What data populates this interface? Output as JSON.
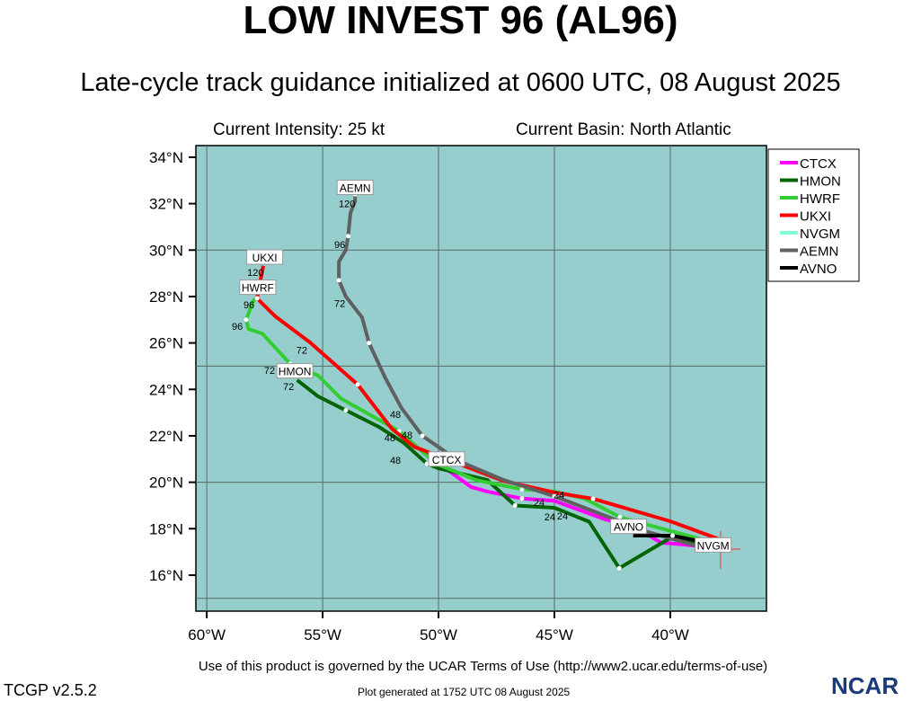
{
  "title": "LOW INVEST 96 (AL96)",
  "subtitle": "Late-cycle track guidance initialized at 0600 UTC, 08 August 2025",
  "current_intensity": "Current Intensity: 25 kt",
  "current_basin": "Current Basin: North Atlantic",
  "terms": "Use of this product is governed by the UCAR Terms of Use (http://www2.ucar.edu/terms-of-use)",
  "version": "TCGP v2.5.2",
  "generated": "Plot generated at 1752 UTC   08 August 2025",
  "logo": "NCAR",
  "chart_data": {
    "type": "map-tracks",
    "lon_range": [
      -60.47,
      -35.85
    ],
    "lat_range": [
      14.45,
      34.5
    ],
    "x_ticks": [
      {
        "v": -60,
        "l": "60°W"
      },
      {
        "v": -55,
        "l": "55°W"
      },
      {
        "v": -50,
        "l": "50°W"
      },
      {
        "v": -45,
        "l": "45°W"
      },
      {
        "v": -40,
        "l": "40°W"
      }
    ],
    "y_ticks": [
      {
        "v": 16,
        "l": "16°N"
      },
      {
        "v": 18,
        "l": "18°N"
      },
      {
        "v": 20,
        "l": "20°N"
      },
      {
        "v": 22,
        "l": "22°N"
      },
      {
        "v": 24,
        "l": "24°N"
      },
      {
        "v": 26,
        "l": "26°N"
      },
      {
        "v": 28,
        "l": "28°N"
      },
      {
        "v": 30,
        "l": "30°N"
      },
      {
        "v": 32,
        "l": "32°N"
      },
      {
        "v": 34,
        "l": "34°N"
      }
    ],
    "grid_lon": [
      -60,
      -55,
      -50,
      -45,
      -40
    ],
    "grid_lat": [
      15,
      20,
      25,
      30
    ],
    "background": "#96cdcd",
    "storm_position": [
      -37.83,
      17.12
    ],
    "models": [
      {
        "name": "CTCX",
        "color": "#ff00ff",
        "track": [
          [
            -38.1,
            17.2
          ],
          [
            -40.4,
            17.4
          ],
          [
            -41.6,
            18.1
          ],
          [
            -42.8,
            18.4
          ],
          [
            -45,
            19.2
          ],
          [
            -46.4,
            19.3
          ],
          [
            -47.9,
            19.6
          ],
          [
            -48.6,
            19.8
          ],
          [
            -49.7,
            20.6
          ]
        ],
        "label_at": [
          -49.65,
          21.0
        ]
      },
      {
        "name": "HMON",
        "color": "#006400",
        "track": [
          [
            -37.9,
            17.2
          ],
          [
            -40,
            17.6
          ],
          [
            -42.2,
            16.3
          ],
          [
            -43.5,
            18.3
          ],
          [
            -45,
            18.9
          ],
          [
            -46.7,
            19.0
          ],
          [
            -47.9,
            20.1
          ],
          [
            -50,
            20.6
          ],
          [
            -50.5,
            20.8
          ],
          [
            -51.5,
            21.7
          ],
          [
            -52.6,
            22.4
          ],
          [
            -54,
            23.1
          ],
          [
            -55.2,
            23.7
          ],
          [
            -56.1,
            24.4
          ]
        ],
        "label_at": [
          -56.2,
          24.8
        ]
      },
      {
        "name": "HWRF",
        "color": "#32cd32",
        "track": [
          [
            -37.9,
            17.35
          ],
          [
            -40,
            17.9
          ],
          [
            -42.17,
            18.5
          ],
          [
            -43.7,
            19.3
          ],
          [
            -45,
            19.6
          ],
          [
            -46.4,
            19.7
          ],
          [
            -48.4,
            20.1
          ],
          [
            -50.1,
            20.8
          ],
          [
            -51.7,
            22.2
          ],
          [
            -54.2,
            23.6
          ],
          [
            -55.2,
            24.6
          ],
          [
            -56.4,
            25.1
          ],
          [
            -57.6,
            26.4
          ],
          [
            -58.2,
            26.6
          ],
          [
            -58.3,
            27.0
          ],
          [
            -58.0,
            27.8
          ],
          [
            -57.8,
            28.0
          ]
        ],
        "label_at": [
          -57.8,
          28.4
        ]
      },
      {
        "name": "UKXI",
        "color": "#ff0000",
        "track": [
          [
            -37.9,
            17.55
          ],
          [
            -40,
            18.32
          ],
          [
            -43.33,
            19.29
          ],
          [
            -45,
            19.56
          ],
          [
            -47.21,
            20.06
          ],
          [
            -49.53,
            20.95
          ],
          [
            -51.05,
            21.53
          ],
          [
            -52.02,
            22.31
          ],
          [
            -53.49,
            24.21
          ],
          [
            -55.54,
            26.02
          ],
          [
            -57.05,
            27.15
          ],
          [
            -57.83,
            27.92
          ],
          [
            -57.67,
            28.77
          ],
          [
            -57.56,
            29.32
          ]
        ],
        "label_at": [
          -57.5,
          29.7
        ]
      },
      {
        "name": "NVGM",
        "color": "#7fffd4",
        "track": [
          [
            -37.9,
            17.1
          ],
          [
            -38.3,
            17.0
          ]
        ],
        "label_at": [
          -38.15,
          17.3
        ]
      },
      {
        "name": "AEMN",
        "color": "#606060",
        "track": [
          [
            -38.3,
            17.1
          ],
          [
            -41.1,
            17.9
          ],
          [
            -45,
            19.4
          ],
          [
            -47.2,
            20.1
          ],
          [
            -49.1,
            20.9
          ],
          [
            -50.7,
            22.0
          ],
          [
            -51.6,
            23.2
          ],
          [
            -52.3,
            24.5
          ],
          [
            -53.0,
            26.0
          ],
          [
            -53.3,
            27.1
          ],
          [
            -54.0,
            28.0
          ],
          [
            -54.3,
            28.7
          ],
          [
            -54.3,
            29.5
          ],
          [
            -54.0,
            30.0
          ],
          [
            -53.9,
            30.6
          ],
          [
            -53.8,
            31.6
          ],
          [
            -53.6,
            32.1
          ],
          [
            -53.6,
            32.4
          ]
        ],
        "label_at": [
          -53.6,
          32.7
        ]
      },
      {
        "name": "AVNO",
        "color": "#000000",
        "track": [
          [
            -38.1,
            17.2
          ],
          [
            -38.9,
            17.5
          ],
          [
            -39.9,
            17.7
          ],
          [
            -41.6,
            17.7
          ]
        ],
        "label_at": [
          -41.8,
          18.1
        ]
      }
    ],
    "hour_labels": [
      {
        "t": "120",
        "lon": -53.95,
        "lat": 32.0
      },
      {
        "t": "96",
        "lon": -54.26,
        "lat": 30.25
      },
      {
        "t": "72",
        "lon": -54.26,
        "lat": 27.7
      },
      {
        "t": "48",
        "lon": -51.86,
        "lat": 22.93
      },
      {
        "t": "120",
        "lon": -57.9,
        "lat": 29.04
      },
      {
        "t": "72",
        "lon": -55.9,
        "lat": 25.7
      },
      {
        "t": "96",
        "lon": -58.18,
        "lat": 27.65
      },
      {
        "t": "96",
        "lon": -58.68,
        "lat": 26.72
      },
      {
        "t": "48",
        "lon": -51.36,
        "lat": 22.04
      },
      {
        "t": "48",
        "lon": -52.1,
        "lat": 21.92
      },
      {
        "t": "48",
        "lon": -51.86,
        "lat": 21.42
      },
      {
        "t": "72",
        "lon": -56.67,
        "lat": 24.82
      },
      {
        "t": "72",
        "lon": -56.47,
        "lat": 24.13
      },
      {
        "t": "24",
        "lon": -45.66,
        "lat": 19.13
      },
      {
        "t": "24",
        "lon": -45.2,
        "lat": 18.98
      },
      {
        "t": "24",
        "lon": -44.8,
        "lat": 19.0
      },
      {
        "t": "24",
        "lon": -45.27,
        "lat": 18.55
      }
    ],
    "legend_position": "right"
  }
}
